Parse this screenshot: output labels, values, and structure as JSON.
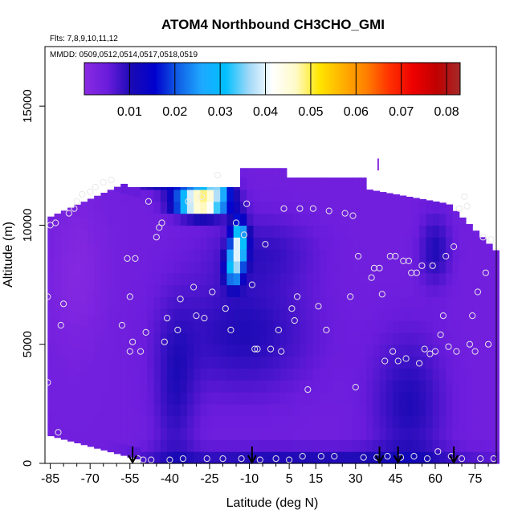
{
  "chart_data": {
    "type": "heatmap",
    "title": "ATOM4 Northbound CH3CHO_GMI",
    "subtitle_flights": "Flts: 7,8,9,10,11,12",
    "subtitle_dates": "MMDD: 0509,0512,0514,0517,0518,0519",
    "xlabel": "Latitude (deg N)",
    "ylabel": "Altitude (m)",
    "xlim": [
      -87,
      83
    ],
    "ylim": [
      0,
      17500
    ],
    "x_ticks": [
      -85,
      -70,
      -55,
      -40,
      -25,
      -10,
      5,
      15,
      30,
      45,
      60,
      75
    ],
    "y_ticks": [
      0,
      5000,
      10000,
      15000
    ],
    "colorbar": {
      "min": 0,
      "max": 0.083,
      "ticks": [
        0.01,
        0.02,
        0.03,
        0.04,
        0.05,
        0.06,
        0.07,
        0.08
      ],
      "tick_labels": [
        "0.01",
        "0.02",
        "0.03",
        "0.04",
        "0.05",
        "0.06",
        "0.07",
        "0.08"
      ],
      "colors": [
        "#8a2be2",
        "#6a1cdc",
        "#1a0ab4",
        "#0000cd",
        "#1060e6",
        "#1ea8ff",
        "#00bfff",
        "#a0d8f8",
        "#ffffff",
        "#fffac8",
        "#ffe600",
        "#ffb000",
        "#ff8000",
        "#ff3000",
        "#ee0000",
        "#c00000",
        "#a52a2a"
      ]
    },
    "value_ranges": {
      "background_mid_troposphere": [
        0.002,
        0.012
      ],
      "upper_plume_near_lat_-30_alt_11000m": [
        0.04,
        0.075
      ],
      "plume_near_lat_-15_alt_9000m": [
        0.025,
        0.045
      ]
    },
    "flight_track_points": [
      [
        -86,
        7000
      ],
      [
        -86,
        3400
      ],
      [
        -85,
        10000
      ],
      [
        -83,
        10100
      ],
      [
        -82,
        1300
      ],
      [
        -81,
        5800
      ],
      [
        -80,
        6700
      ],
      [
        -78,
        10500
      ],
      [
        -76,
        10700
      ],
      [
        -75,
        11000
      ],
      [
        -73,
        11300
      ],
      [
        -70,
        11400
      ],
      [
        -68,
        11600
      ],
      [
        -65,
        11800
      ],
      [
        -62,
        11900
      ],
      [
        -58,
        5800
      ],
      [
        -56,
        8600
      ],
      [
        -55,
        7000
      ],
      [
        -55,
        4700
      ],
      [
        -54,
        5100
      ],
      [
        -53,
        8600
      ],
      [
        -52,
        200
      ],
      [
        -51,
        4700
      ],
      [
        -50,
        150
      ],
      [
        -49,
        5500
      ],
      [
        -48,
        11000
      ],
      [
        -47,
        150
      ],
      [
        -45,
        9500
      ],
      [
        -44,
        9900
      ],
      [
        -43,
        10100
      ],
      [
        -42,
        5100
      ],
      [
        -41,
        6100
      ],
      [
        -40,
        150
      ],
      [
        -37,
        5600
      ],
      [
        -36,
        6900
      ],
      [
        -35,
        200
      ],
      [
        -33,
        11000
      ],
      [
        -31,
        7400
      ],
      [
        -30,
        6200
      ],
      [
        -28,
        11200
      ],
      [
        -27,
        6100
      ],
      [
        -26,
        200
      ],
      [
        -24,
        7200
      ],
      [
        -22,
        12100
      ],
      [
        -20,
        200
      ],
      [
        -19,
        6500
      ],
      [
        -17,
        5600
      ],
      [
        -15,
        10100
      ],
      [
        -13,
        200
      ],
      [
        -12,
        9600
      ],
      [
        -11,
        10900
      ],
      [
        -9,
        7500
      ],
      [
        -8,
        4800
      ],
      [
        -7,
        4800
      ],
      [
        -6,
        150
      ],
      [
        -4,
        9200
      ],
      [
        -2,
        4800
      ],
      [
        0,
        200
      ],
      [
        1,
        5600
      ],
      [
        2,
        4700
      ],
      [
        3,
        10700
      ],
      [
        5,
        150
      ],
      [
        6,
        6500
      ],
      [
        7,
        6000
      ],
      [
        8,
        7000
      ],
      [
        9,
        10700
      ],
      [
        10,
        300
      ],
      [
        12,
        3100
      ],
      [
        14,
        10700
      ],
      [
        16,
        6600
      ],
      [
        17,
        300
      ],
      [
        19,
        5600
      ],
      [
        20,
        10600
      ],
      [
        22,
        300
      ],
      [
        26,
        10500
      ],
      [
        28,
        7000
      ],
      [
        29,
        10400
      ],
      [
        30,
        3200
      ],
      [
        31,
        8700
      ],
      [
        33,
        250
      ],
      [
        36,
        7800
      ],
      [
        37,
        8200
      ],
      [
        38,
        250
      ],
      [
        39,
        8200
      ],
      [
        40,
        7100
      ],
      [
        41,
        4300
      ],
      [
        42,
        300
      ],
      [
        43,
        8700
      ],
      [
        44,
        4700
      ],
      [
        45,
        8700
      ],
      [
        46,
        4300
      ],
      [
        47,
        250
      ],
      [
        48,
        8500
      ],
      [
        49,
        4400
      ],
      [
        50,
        8500
      ],
      [
        51,
        8000
      ],
      [
        52,
        300
      ],
      [
        53,
        8000
      ],
      [
        54,
        4200
      ],
      [
        55,
        8300
      ],
      [
        56,
        4800
      ],
      [
        57,
        200
      ],
      [
        58,
        4600
      ],
      [
        59,
        8300
      ],
      [
        60,
        4700
      ],
      [
        61,
        500
      ],
      [
        62,
        5400
      ],
      [
        63,
        6200
      ],
      [
        64,
        8700
      ],
      [
        65,
        4900
      ],
      [
        66,
        300
      ],
      [
        67,
        9100
      ],
      [
        68,
        4700
      ],
      [
        69,
        10700
      ],
      [
        70,
        200
      ],
      [
        71,
        11200
      ],
      [
        72,
        10800
      ],
      [
        73,
        5000
      ],
      [
        74,
        6200
      ],
      [
        75,
        4700
      ],
      [
        76,
        7200
      ],
      [
        77,
        200
      ],
      [
        78,
        9500
      ],
      [
        79,
        8000
      ],
      [
        80,
        5000
      ],
      [
        81,
        9400
      ],
      [
        82,
        200
      ]
    ],
    "arrow_latitudes": [
      -54,
      -9,
      39,
      46,
      67
    ],
    "vertical_marker": {
      "lat": 38.5,
      "alt_range": [
        12300,
        12800
      ]
    }
  }
}
